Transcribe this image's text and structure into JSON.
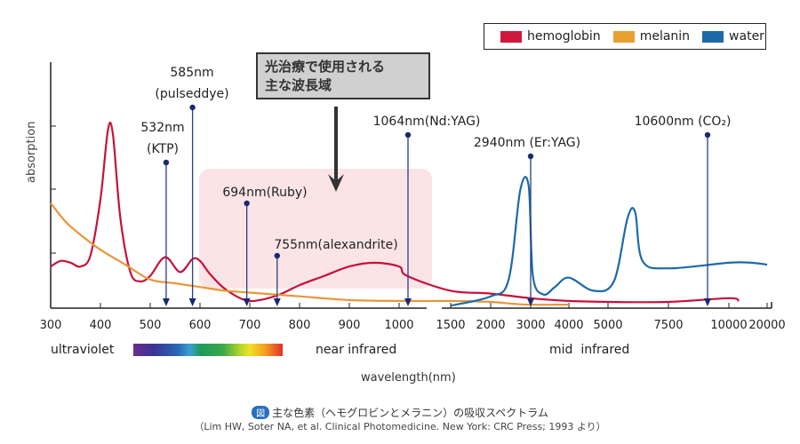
{
  "chart_data": {
    "type": "line",
    "title": "",
    "xlabel": "wavelength(nm)",
    "ylabel": "absorption",
    "x_scale": "piecewise (linear 300–1000 nm, compressed log-like 1500–20000 nm)",
    "x_ticks": [
      "300",
      "400",
      "500",
      "600",
      "700",
      "800",
      "900",
      "1000",
      "1500",
      "2000",
      "3000",
      "4000",
      "5000",
      "7500",
      "10000",
      "20000"
    ],
    "y_ticks_count": 3,
    "grid": false,
    "legend": {
      "placement": "top-right",
      "entries": [
        {
          "name": "hemoglobin",
          "color": "#d0173f"
        },
        {
          "name": "melanin",
          "color": "#e8a030"
        },
        {
          "name": "water",
          "color": "#1c6aa8"
        }
      ]
    },
    "series": [
      {
        "name": "hemoglobin",
        "color": "#c8103a",
        "points": [
          [
            300,
            0.19
          ],
          [
            320,
            0.22
          ],
          [
            340,
            0.21
          ],
          [
            360,
            0.19
          ],
          [
            380,
            0.25
          ],
          [
            400,
            0.55
          ],
          [
            415,
            0.92
          ],
          [
            425,
            0.9
          ],
          [
            440,
            0.45
          ],
          [
            460,
            0.16
          ],
          [
            480,
            0.11
          ],
          [
            500,
            0.14
          ],
          [
            530,
            0.24
          ],
          [
            560,
            0.16
          ],
          [
            585,
            0.23
          ],
          [
            600,
            0.22
          ],
          [
            620,
            0.15
          ],
          [
            650,
            0.07
          ],
          [
            690,
            0.01
          ],
          [
            720,
            0.01
          ],
          [
            760,
            0.04
          ],
          [
            800,
            0.09
          ],
          [
            850,
            0.14
          ],
          [
            900,
            0.19
          ],
          [
            950,
            0.21
          ],
          [
            1000,
            0.19
          ],
          [
            1064,
            0.14
          ],
          [
            1500,
            0.06
          ],
          [
            2000,
            0.045
          ],
          [
            3000,
            0.02
          ],
          [
            4000,
            0.005
          ],
          [
            5000,
            0.0
          ],
          [
            7500,
            0.0
          ],
          [
            10000,
            0.02
          ],
          [
            12000,
            0.005
          ]
        ]
      },
      {
        "name": "melanin",
        "color": "#e8963a",
        "points": [
          [
            300,
            0.53
          ],
          [
            330,
            0.43
          ],
          [
            360,
            0.36
          ],
          [
            400,
            0.28
          ],
          [
            450,
            0.2
          ],
          [
            500,
            0.12
          ],
          [
            550,
            0.1
          ],
          [
            600,
            0.08
          ],
          [
            650,
            0.06
          ],
          [
            700,
            0.05
          ],
          [
            800,
            0.03
          ],
          [
            900,
            0.01
          ],
          [
            1000,
            0.005
          ],
          [
            1500,
            0.005
          ],
          [
            2000,
            0.0
          ],
          [
            2500,
            -0.01
          ],
          [
            3000,
            -0.015
          ],
          [
            4000,
            -0.015
          ]
        ]
      },
      {
        "name": "water",
        "color": "#1c6aa8",
        "points": [
          [
            1500,
            -0.02
          ],
          [
            2000,
            0.03
          ],
          [
            2400,
            0.12
          ],
          [
            2700,
            0.6
          ],
          [
            2940,
            0.62
          ],
          [
            3050,
            0.14
          ],
          [
            3300,
            0.04
          ],
          [
            3600,
            0.08
          ],
          [
            4000,
            0.13
          ],
          [
            4600,
            0.06
          ],
          [
            5200,
            0.11
          ],
          [
            5700,
            0.45
          ],
          [
            6000,
            0.48
          ],
          [
            6300,
            0.22
          ],
          [
            7500,
            0.18
          ],
          [
            10000,
            0.21
          ],
          [
            15000,
            0.21
          ],
          [
            20000,
            0.2
          ]
        ]
      }
    ],
    "annotations": [
      {
        "label_line1": "532nm",
        "label_line2": "(KTP)",
        "x": 532
      },
      {
        "label_line1": "585nm",
        "label_line2": "(pulseddye)",
        "x": 585
      },
      {
        "label_line1": "694nm(Ruby)",
        "label_line2": "",
        "x": 694
      },
      {
        "label_line1": "755nm(alexandrite)",
        "label_line2": "",
        "x": 755
      },
      {
        "label_line1": "1064nm(Nd:YAG)",
        "label_line2": "",
        "x": 1064
      },
      {
        "label_line1": "2940nm (Er:YAG)",
        "label_line2": "",
        "x": 2940
      },
      {
        "label_line1": "10600nm (CO₂)",
        "label_line2": "",
        "x": 10600
      }
    ],
    "highlight_region": {
      "from_nm": 600,
      "to_nm": 1300,
      "color": "#fbe4e6"
    }
  },
  "callout": {
    "line1": "光治療で使用される",
    "line2": "主な波長域"
  },
  "regions": {
    "ultraviolet": "ultraviolet",
    "near_infrared": "near infrared",
    "mid_infrared": "mid  infrared"
  },
  "caption": {
    "badge": "図",
    "title": "主な色素（ヘモグロビンとメラニン）の吸収スペクトラム",
    "source": "（Lim HW, Soter NA, et al. Clinical Photomedicine. New York: CRC Press; 1993 より）"
  }
}
